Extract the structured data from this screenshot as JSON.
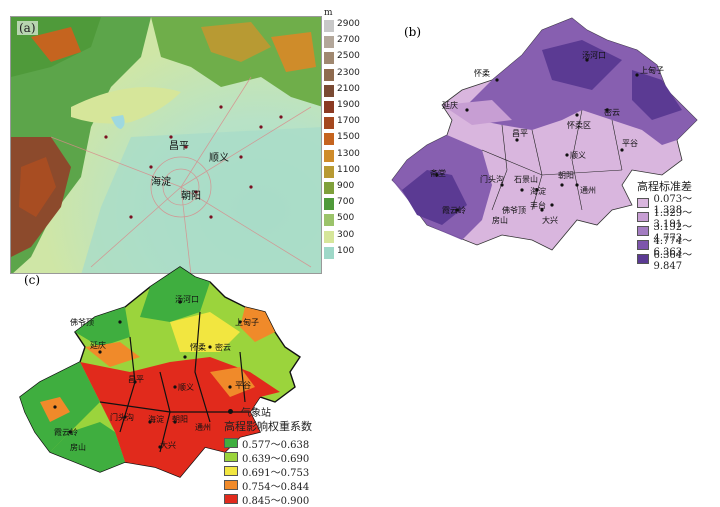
{
  "panel_a": {
    "label": "(a)",
    "places": {
      "changping": "昌平",
      "shunyi": "顺义",
      "haidian": "海淀",
      "chaoyang": "朝阳"
    },
    "legend": {
      "unit": "m",
      "ticks": [
        "2900",
        "2700",
        "2500",
        "2300",
        "2100",
        "1900",
        "1700",
        "1500",
        "1300",
        "1100",
        "900",
        "700",
        "500",
        "300",
        "100"
      ],
      "colors": [
        "#c8c8c8",
        "#b3a79a",
        "#a08870",
        "#8f6b4f",
        "#7a4a33",
        "#8b3a22",
        "#a5481f",
        "#c5641f",
        "#cf8c2a",
        "#b89a33",
        "#7fa03b",
        "#4f9a3a",
        "#9bc36a",
        "#d6e69a",
        "#9ed8c8"
      ]
    }
  },
  "panel_b": {
    "label": "(b)",
    "places": [
      "延庆",
      "怀柔",
      "汤河口",
      "上甸子",
      "密云",
      "怀柔区",
      "平谷",
      "昌平",
      "顺义",
      "门头沟",
      "石景山",
      "海淀",
      "朝阳",
      "通州",
      "丰台",
      "大兴",
      "霞云岭",
      "房山",
      "斋堂",
      "佛爷顶"
    ],
    "legend": {
      "title": "高程标准差",
      "items": [
        "0.073～1.328",
        "1.329～3.191",
        "3.192～4.773",
        "4.774～6.363",
        "6.364～9.847"
      ],
      "colors": [
        "#d9b6de",
        "#c79ed3",
        "#a37cc1",
        "#7d55ab",
        "#5b3a93"
      ]
    }
  },
  "panel_c": {
    "label": "(c)",
    "places": [
      "汤河口",
      "延庆",
      "佛爷顶",
      "上甸子",
      "怀柔",
      "密云",
      "昌平",
      "顺义",
      "平谷",
      "霞云岭",
      "门头沟",
      "海淀",
      "朝阳",
      "通州",
      "房山",
      "大兴"
    ],
    "legend": {
      "station": "气象站",
      "title": "高程影响权重系数",
      "items": [
        "0.577～0.638",
        "0.639～0.690",
        "0.691～0.753",
        "0.754～0.844",
        "0.845～0.900"
      ],
      "colors": [
        "#3fae3f",
        "#9bd43c",
        "#f2e640",
        "#f08a2a",
        "#e12a1c"
      ]
    }
  }
}
